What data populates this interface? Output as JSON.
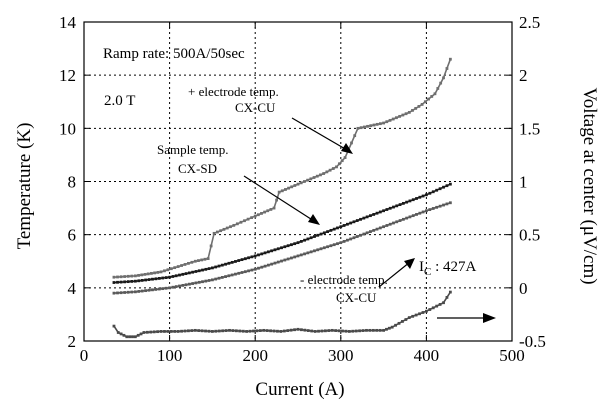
{
  "chart_data": {
    "type": "line",
    "xlabel": "Current (A)",
    "ylabel": "Temperature (K)",
    "y2label": "Voltage at center (μV/cm)",
    "xlim": [
      0,
      500
    ],
    "ylim": [
      2,
      14
    ],
    "y2lim": [
      -0.5,
      2.5
    ],
    "grid": true,
    "xticks": [
      "0",
      "100",
      "200",
      "300",
      "400",
      "500"
    ],
    "yticks": [
      "2",
      "4",
      "6",
      "8",
      "10",
      "12",
      "14"
    ],
    "y2ticks": [
      "-0.5",
      "0",
      "0.5",
      "1",
      "1.5",
      "2",
      "2.5"
    ],
    "annotations": {
      "ramp_rate": "Ramp rate: 500A/50sec",
      "field": "2.0 T",
      "plus_electrode_line1": "+ electrode temp.",
      "plus_electrode_line2": "CX-CU",
      "sample_line1": "Sample temp.",
      "sample_line2": "CX-SD",
      "minus_electrode_line1": "- electrode temp.",
      "minus_electrode_line2": "CX-CU",
      "ic_symbol": "I",
      "ic_subscript": "C",
      "ic_value": " : 427A"
    },
    "series": [
      {
        "color": "#6f6f6f",
        "axis": "left",
        "x": [
          35,
          60,
          90,
          110,
          130,
          145,
          152,
          175,
          200,
          222,
          228,
          250,
          280,
          295,
          305,
          320,
          350,
          365,
          380,
          395,
          410,
          420,
          428
        ],
        "y": [
          4.4,
          4.45,
          4.6,
          4.8,
          5.0,
          5.1,
          6.05,
          6.35,
          6.7,
          7.0,
          7.6,
          7.9,
          8.3,
          8.55,
          8.9,
          10.0,
          10.2,
          10.4,
          10.6,
          10.9,
          11.3,
          11.9,
          12.6
        ]
      },
      {
        "color": "#1a1a1a",
        "axis": "left",
        "x": [
          35,
          60,
          100,
          150,
          200,
          250,
          300,
          350,
          400,
          428
        ],
        "y": [
          4.2,
          4.25,
          4.4,
          4.75,
          5.2,
          5.7,
          6.3,
          6.9,
          7.5,
          7.9
        ]
      },
      {
        "color": "#5a5a5a",
        "axis": "left",
        "x": [
          35,
          60,
          100,
          150,
          200,
          250,
          300,
          350,
          400,
          428
        ],
        "y": [
          3.8,
          3.85,
          4.0,
          4.3,
          4.7,
          5.2,
          5.7,
          6.3,
          6.9,
          7.2
        ]
      },
      {
        "color": "#4a4a4a",
        "axis": "right",
        "x": [
          35,
          40,
          50,
          60,
          70,
          90,
          110,
          130,
          150,
          170,
          190,
          210,
          230,
          250,
          270,
          290,
          310,
          330,
          350,
          360,
          380,
          400,
          420,
          428
        ],
        "y": [
          -0.36,
          -0.42,
          -0.46,
          -0.46,
          -0.42,
          -0.41,
          -0.41,
          -0.4,
          -0.41,
          -0.4,
          -0.41,
          -0.4,
          -0.41,
          -0.39,
          -0.41,
          -0.4,
          -0.41,
          -0.4,
          -0.4,
          -0.37,
          -0.28,
          -0.22,
          -0.14,
          -0.04
        ]
      }
    ]
  }
}
